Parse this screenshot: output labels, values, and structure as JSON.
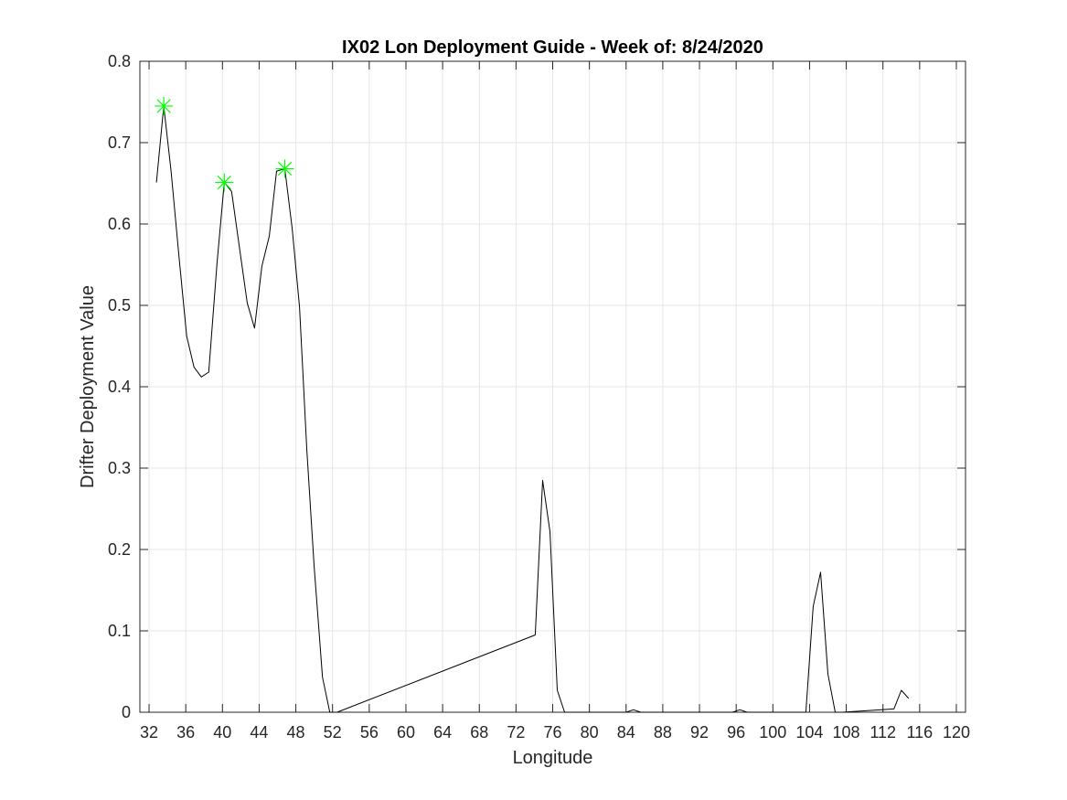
{
  "chart_data": {
    "type": "line",
    "title": "IX02 Lon Deployment Guide - Week of: 8/24/2020",
    "xlabel": "Longitude",
    "ylabel": "Drifter Deployment Value",
    "xlim": [
      31,
      121
    ],
    "ylim": [
      0,
      0.8
    ],
    "xticks": [
      32,
      36,
      40,
      44,
      48,
      52,
      56,
      60,
      64,
      68,
      72,
      76,
      80,
      84,
      88,
      92,
      96,
      100,
      104,
      108,
      112,
      116,
      120
    ],
    "xtick_labels": [
      "32",
      "36",
      "40",
      "44",
      "48",
      "52",
      "56",
      "60",
      "64",
      "68",
      "72",
      "76",
      "80",
      "84",
      "88",
      "92",
      "96",
      "100",
      "104",
      "108",
      "112",
      "116",
      "120"
    ],
    "yticks": [
      0,
      0.1,
      0.2,
      0.3,
      0.4,
      0.5,
      0.6,
      0.7,
      0.8
    ],
    "ytick_labels": [
      "0",
      "0.1",
      "0.2",
      "0.3",
      "0.4",
      "0.5",
      "0.6",
      "0.7",
      "0.8"
    ],
    "grid": true,
    "series": [
      {
        "color": "#000000",
        "x": [
          32.8,
          33.6,
          34.4,
          35.3,
          36.1,
          36.9,
          37.7,
          38.5,
          39.4,
          40.2,
          41.0,
          41.8,
          42.7,
          43.5,
          44.3,
          45.1,
          45.9,
          46.8,
          47.6,
          48.4,
          49.2,
          50.0,
          50.9,
          51.7,
          52.5,
          74.1,
          74.9,
          75.7,
          76.5,
          77.3,
          84.0,
          84.8,
          85.6,
          95.6,
          96.4,
          97.2,
          103.6,
          104.4,
          105.2,
          106.0,
          106.8,
          107.6,
          113.2,
          114.0,
          114.8
        ],
        "y": [
          0.651,
          0.745,
          0.665,
          0.556,
          0.462,
          0.424,
          0.412,
          0.418,
          0.551,
          0.651,
          0.64,
          0.575,
          0.503,
          0.472,
          0.548,
          0.585,
          0.665,
          0.668,
          0.594,
          0.498,
          0.322,
          0.179,
          0.043,
          0.0,
          0.0,
          0.095,
          0.285,
          0.222,
          0.027,
          0.0,
          0.0,
          0.003,
          0.0,
          0.0,
          0.003,
          0.0,
          0.0,
          0.13,
          0.172,
          0.047,
          0.0,
          0.0,
          0.004,
          0.027,
          0.017
        ]
      }
    ],
    "markers": {
      "style": "asterisk",
      "color": "#00ff00",
      "points": [
        {
          "x": 33.6,
          "y": 0.745
        },
        {
          "x": 40.2,
          "y": 0.651
        },
        {
          "x": 46.8,
          "y": 0.668
        }
      ]
    }
  }
}
